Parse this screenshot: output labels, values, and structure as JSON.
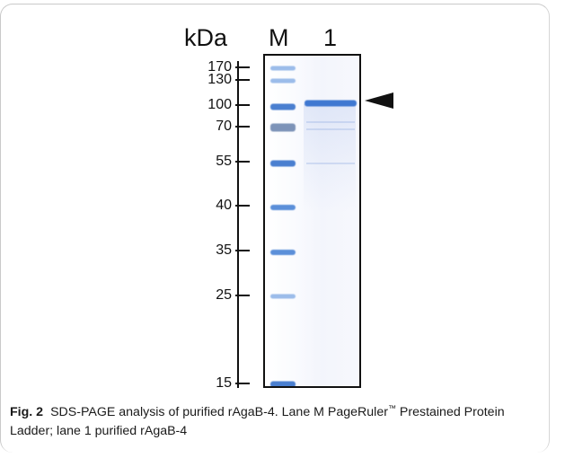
{
  "figure": {
    "unit_label": "kDa",
    "lane_labels": [
      "M",
      "1"
    ],
    "markers": [
      {
        "label": "170",
        "kda": 170
      },
      {
        "label": "130",
        "kda": 130
      },
      {
        "label": "100",
        "kda": 100
      },
      {
        "label": "70",
        "kda": 70
      },
      {
        "label": "55",
        "kda": 55
      },
      {
        "label": "40",
        "kda": 40
      },
      {
        "label": "35",
        "kda": 35
      },
      {
        "label": "25",
        "kda": 25
      },
      {
        "label": "15",
        "kda": 15
      }
    ],
    "band_color": "#4a7fd0",
    "arrow_icon": "arrowhead-left"
  },
  "caption": {
    "figure_number": "Fig. 2",
    "text_before_tm": "SDS-PAGE analysis of purified rAgaB-4. Lane M PageRuler",
    "trademark": "™",
    "text_after_tm": " Prestained Protein Ladder; lane 1 purified rAgaB-4"
  }
}
